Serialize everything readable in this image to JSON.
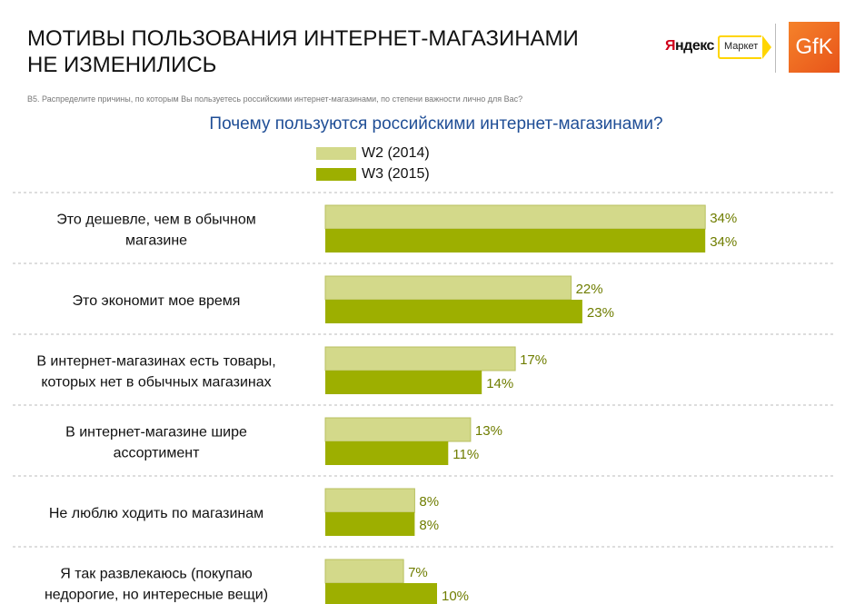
{
  "header": {
    "title_line1": "МОТИВЫ ПОЛЬЗОВАНИЯ ИНТЕРНЕТ-МАГАЗИНАМИ",
    "title_line2": "НЕ ИЗМЕНИЛИСЬ"
  },
  "logos": {
    "yandex_first": "Я",
    "yandex_rest": "ндекс",
    "market": "Маркет",
    "gfk": "GfK"
  },
  "question": "B5. Распределите причины, по которым Вы пользуетесь российскими интернет-магазинами, по степени важности лично для Вас?",
  "chart_data": {
    "type": "bar",
    "orientation": "horizontal",
    "title": "Почему пользуются российскими интернет-магазинами?",
    "legend_placement": "top",
    "categories": [
      [
        "Это дешевле, чем в обычном",
        "магазине"
      ],
      [
        "Это экономит мое время"
      ],
      [
        "В интернет-магазинах есть товары,",
        "которых нет в обычных магазинах"
      ],
      [
        "В интернет-магазине шире",
        "ассортимент"
      ],
      [
        "Не люблю ходить по магазинам"
      ],
      [
        "Я так развлекаюсь (покупаю",
        "недорогие, но интересные вещи)"
      ]
    ],
    "series": [
      {
        "name": "W2 (2014)",
        "color": "#d3d98a",
        "values": [
          34,
          22,
          17,
          13,
          8,
          7
        ]
      },
      {
        "name": "W3 (2015)",
        "color": "#9daf00",
        "values": [
          34,
          23,
          14,
          11,
          8,
          10
        ]
      }
    ],
    "value_suffix": "%",
    "label_color": "#6f7d00",
    "grid": false
  }
}
